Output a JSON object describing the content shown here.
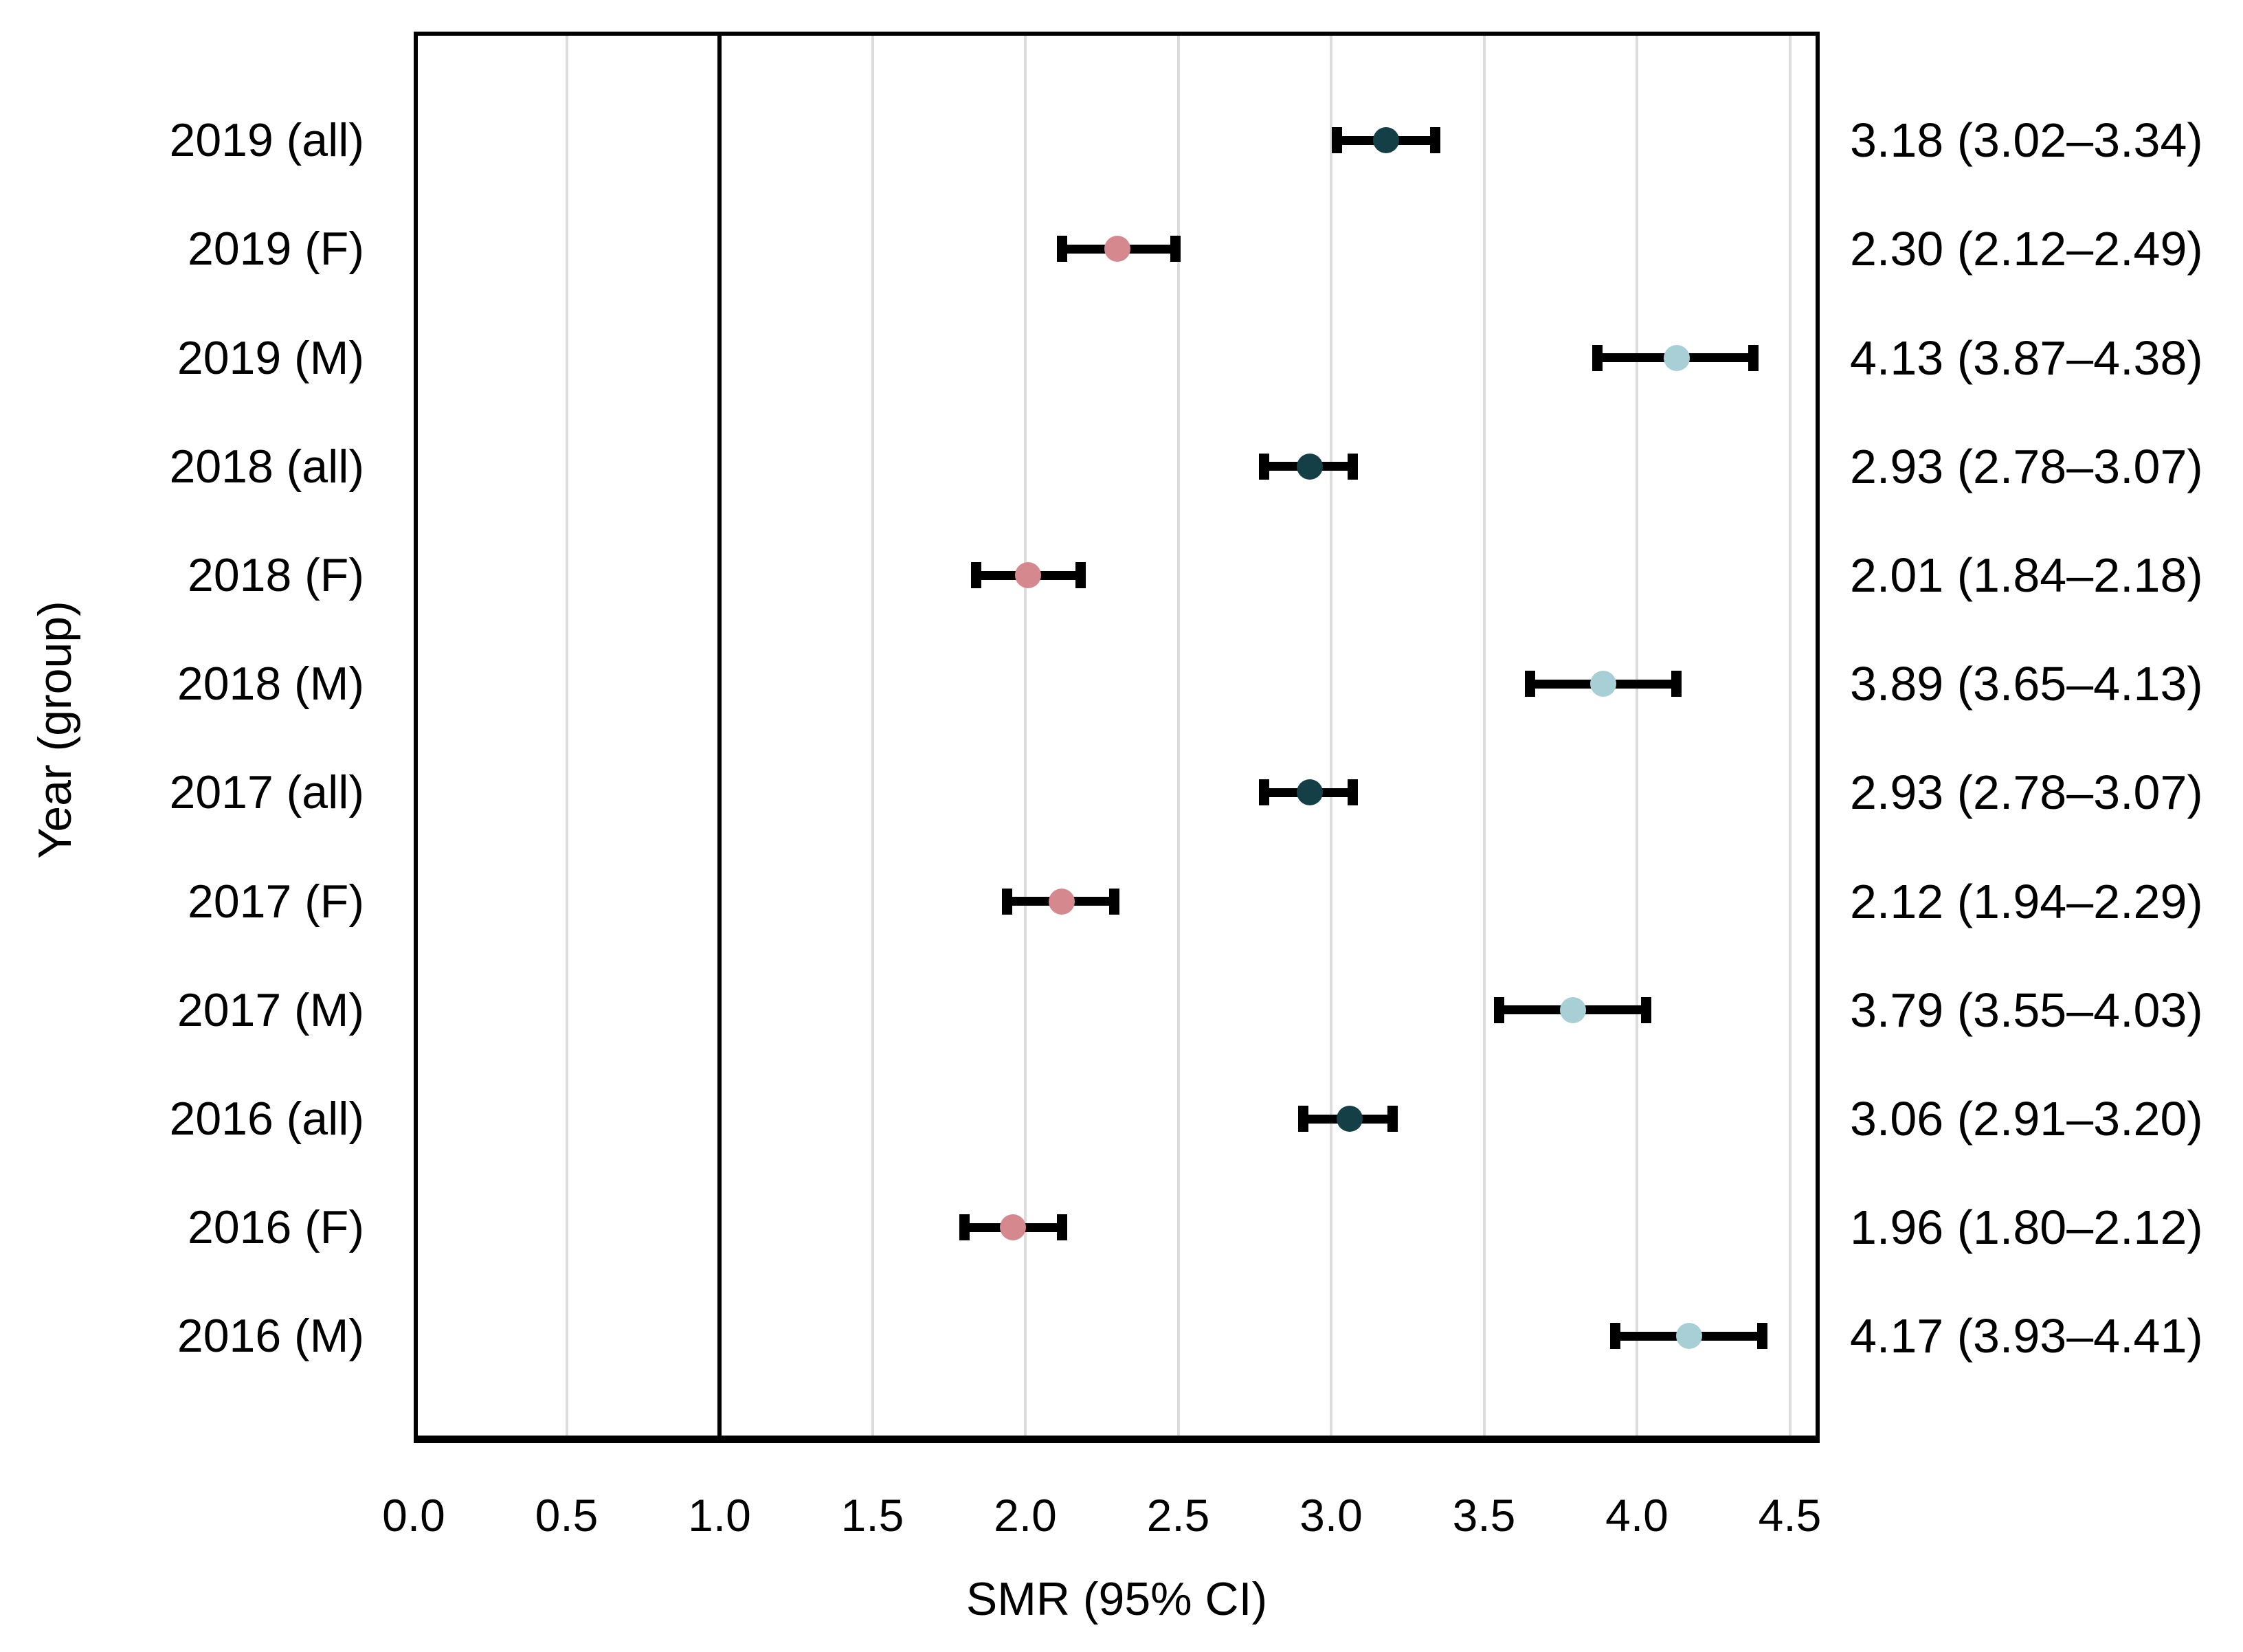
{
  "chart_data": {
    "type": "forest",
    "title": "",
    "xlabel": "SMR (95% CI)",
    "ylabel": "Year (group)",
    "xlim": [
      0.0,
      4.5
    ],
    "xticks": [
      "0.0",
      "0.5",
      "1.0",
      "1.5",
      "2.0",
      "2.5",
      "3.0",
      "3.5",
      "4.0",
      "4.5"
    ],
    "reference_line_x": 1.0,
    "grid": true,
    "legend": "none",
    "colors": {
      "all": "#143f47",
      "F": "#d5898e",
      "M": "#a9cfd6"
    },
    "error_bar_color": "#000000",
    "gridline_color": "#dcdcdc",
    "rows": [
      {
        "label": "2019 (all)",
        "group": "all",
        "value": 3.18,
        "ci_low": 3.02,
        "ci_high": 3.34,
        "annotation": "3.18 (3.02–3.34)"
      },
      {
        "label": "2019 (F)",
        "group": "F",
        "value": 2.3,
        "ci_low": 2.12,
        "ci_high": 2.49,
        "annotation": "2.30 (2.12–2.49)"
      },
      {
        "label": "2019 (M)",
        "group": "M",
        "value": 4.13,
        "ci_low": 3.87,
        "ci_high": 4.38,
        "annotation": "4.13 (3.87–4.38)"
      },
      {
        "label": "2018 (all)",
        "group": "all",
        "value": 2.93,
        "ci_low": 2.78,
        "ci_high": 3.07,
        "annotation": "2.93 (2.78–3.07)"
      },
      {
        "label": "2018 (F)",
        "group": "F",
        "value": 2.01,
        "ci_low": 1.84,
        "ci_high": 2.18,
        "annotation": "2.01 (1.84–2.18)"
      },
      {
        "label": "2018 (M)",
        "group": "M",
        "value": 3.89,
        "ci_low": 3.65,
        "ci_high": 4.13,
        "annotation": "3.89 (3.65–4.13)"
      },
      {
        "label": "2017 (all)",
        "group": "all",
        "value": 2.93,
        "ci_low": 2.78,
        "ci_high": 3.07,
        "annotation": "2.93 (2.78–3.07)"
      },
      {
        "label": "2017 (F)",
        "group": "F",
        "value": 2.12,
        "ci_low": 1.94,
        "ci_high": 2.29,
        "annotation": "2.12 (1.94–2.29)"
      },
      {
        "label": "2017 (M)",
        "group": "M",
        "value": 3.79,
        "ci_low": 3.55,
        "ci_high": 4.03,
        "annotation": "3.79 (3.55–4.03)"
      },
      {
        "label": "2016 (all)",
        "group": "all",
        "value": 3.06,
        "ci_low": 2.91,
        "ci_high": 3.2,
        "annotation": "3.06 (2.91–3.20)"
      },
      {
        "label": "2016 (F)",
        "group": "F",
        "value": 1.96,
        "ci_low": 1.8,
        "ci_high": 2.12,
        "annotation": "1.96 (1.80–2.12)"
      },
      {
        "label": "2016 (M)",
        "group": "M",
        "value": 4.17,
        "ci_low": 3.93,
        "ci_high": 4.41,
        "annotation": "4.17 (3.93–4.41)"
      }
    ]
  }
}
